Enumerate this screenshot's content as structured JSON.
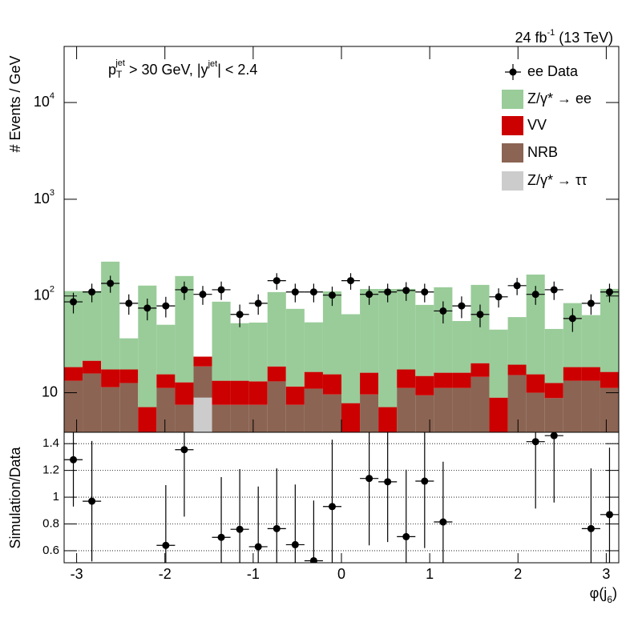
{
  "chart_data": [
    {
      "type": "stacked_histogram",
      "log_y": true,
      "ylabel": "# Events / GeV",
      "lumi": "24 fb",
      "lumi_exponent": "-1",
      "lumi_energy": "(13 TeV)",
      "annotation": [
        "p",
        "T",
        "jet",
        " > 30 GeV,  |y",
        "jet",
        "| < 2.4"
      ],
      "bins": [
        -3.1416,
        -2.9322,
        -2.7227,
        -2.5133,
        -2.3038,
        -2.0944,
        -1.885,
        -1.6755,
        -1.4661,
        -1.2566,
        -1.0472,
        -0.8378,
        -0.6283,
        -0.4189,
        -0.2094,
        0,
        0.2094,
        0.4189,
        0.6283,
        0.8378,
        1.0472,
        1.2566,
        1.4661,
        1.6755,
        1.885,
        2.0944,
        2.3038,
        2.5133,
        2.7227,
        2.9322,
        3.1416
      ],
      "ylim": [
        3.9,
        38000
      ],
      "yticks": [
        10,
        {
          "value": 100,
          "label": "10",
          "power": "2"
        },
        {
          "value": 1000,
          "label": "10",
          "power": "3"
        },
        {
          "value": 10000,
          "label": "10",
          "power": "4"
        }
      ],
      "data": {
        "name": "ee Data",
        "color": "#000000",
        "values": [
          87,
          110,
          135,
          84,
          75,
          79,
          116,
          104,
          116,
          64.5,
          84,
          144,
          110,
          110,
          102,
          144,
          104,
          110,
          114,
          110,
          70,
          79,
          64.5,
          98,
          128,
          104,
          116,
          58.5,
          84,
          110
        ],
        "errors": [
          21,
          24,
          27,
          20,
          19,
          19,
          25,
          23,
          25,
          17,
          20,
          28,
          24,
          24,
          23,
          28,
          23,
          24,
          25,
          24,
          18,
          20,
          17,
          22,
          26,
          23,
          25,
          16,
          20,
          24
        ]
      },
      "series": [
        {
          "name": "Z/γ* → ee",
          "color": "#99cc99",
          "values": [
            94,
            91,
            209,
            19.1,
            121,
            34.9,
            148,
            0,
            74,
            39,
            40,
            91,
            62,
            37,
            96,
            57,
            102,
            111,
            101,
            66,
            107,
            39,
            110,
            36,
            41,
            151,
            33,
            66,
            45,
            102
          ]
        },
        {
          "name": "VV",
          "color": "#cc0000",
          "values": [
            5.1,
            5.6,
            6,
            4.8,
            7.1,
            4.3,
            5.3,
            4.9,
            5.8,
            5.8,
            5.6,
            5.6,
            4.1,
            5.4,
            5.9,
            7.8,
            6.5,
            7.1,
            6.2,
            5.5,
            4.9,
            4.9,
            5.6,
            8.9,
            4.3,
            5.5,
            3.8,
            5.1,
            5.1,
            5.2
          ]
        },
        {
          "name": "NRB",
          "color": "#8b6453",
          "values": [
            13.3,
            15.8,
            11.4,
            12.6,
            0,
            11.2,
            7.5,
            9.8,
            7.5,
            7.5,
            7.5,
            13.1,
            7.5,
            11,
            9.6,
            0,
            9.6,
            0,
            11.2,
            9.4,
            11.2,
            11.2,
            14.6,
            0,
            15.2,
            10,
            8.8,
            13.3,
            13.3,
            11.2
          ]
        },
        {
          "name": "Z/γ* → ττ",
          "color": "#cccccc",
          "values": [
            0,
            0,
            0,
            0,
            0,
            0,
            0,
            8.9,
            0,
            0,
            0,
            0,
            0,
            0,
            0,
            0,
            0,
            0,
            0,
            0,
            0,
            0,
            0,
            0,
            0,
            0,
            0,
            0,
            0,
            0
          ]
        }
      ]
    },
    {
      "type": "scatter",
      "ylabel": "Simulation/Data",
      "xlabel": [
        "φ(j",
        "6",
        ")"
      ],
      "x": [
        -3.0369,
        -2.8274,
        -2.618,
        -2.4086,
        -2.1991,
        -1.9897,
        -1.7802,
        -1.5708,
        -1.3614,
        -1.1519,
        -0.9425,
        -0.733,
        -0.5236,
        -0.3142,
        -0.1047,
        0.1047,
        0.3142,
        0.5236,
        0.733,
        0.9425,
        1.1519,
        1.3614,
        1.5708,
        1.7802,
        1.9897,
        2.1991,
        2.4086,
        2.618,
        2.8274,
        3.0369
      ],
      "values": [
        1.28,
        0.97,
        null,
        null,
        null,
        0.64,
        1.355,
        null,
        0.7,
        0.76,
        0.63,
        0.765,
        0.645,
        0.525,
        0.93,
        null,
        1.14,
        1.115,
        0.705,
        1.12,
        0.815,
        null,
        null,
        null,
        null,
        1.415,
        1.46,
        null,
        0.765,
        0.87
      ],
      "errors": [
        0.35,
        0.45,
        null,
        null,
        null,
        0.45,
        0.5,
        null,
        0.45,
        0.45,
        0.45,
        0.45,
        0.45,
        0.45,
        0.5,
        null,
        0.5,
        0.45,
        0.5,
        0.5,
        0.45,
        null,
        null,
        null,
        null,
        0.5,
        0.5,
        null,
        0.45,
        0.5
      ],
      "color": "#000000",
      "xlim": [
        -3.1416,
        3.1416
      ],
      "xticks": [
        -3,
        -2,
        -1,
        0,
        1,
        2,
        3
      ],
      "ylim": [
        0.51,
        1.485
      ],
      "yticks": [
        0.6,
        0.8,
        1,
        1.2,
        1.4
      ],
      "grid": true
    }
  ]
}
